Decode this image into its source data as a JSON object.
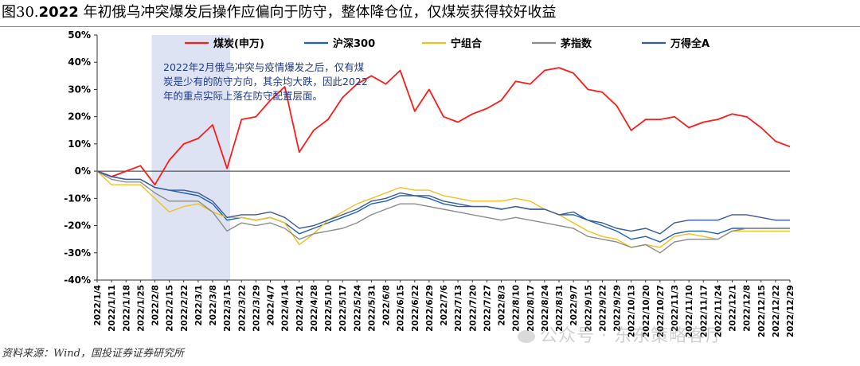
{
  "title": {
    "figure_label": "图30.",
    "year": "2022",
    "text": " 年初俄乌冲突爆发后操作应偏向于防守，整体降仓位，仅煤炭获得较好收益"
  },
  "source": "资料来源：Wind，国投证券证券研究所",
  "watermark": "公众号 · 东东策略客厅",
  "chart_data": {
    "type": "line",
    "title": "2022 年初俄乌冲突爆发后操作应偏向于防守，整体降仓位，仅煤炭获得较好收益",
    "ylim": [
      -40,
      50
    ],
    "yticks": [
      -40,
      -30,
      -20,
      -10,
      0,
      10,
      20,
      30,
      40,
      50
    ],
    "ytick_labels": [
      "-40%",
      "-30%",
      "-20%",
      "-10%",
      "0%",
      "10%",
      "20%",
      "30%",
      "40%",
      "50%"
    ],
    "x_tick_labels": [
      "2022/1/4",
      "2022/1/11",
      "2022/1/18",
      "2022/1/25",
      "2022/2/8",
      "2022/2/15",
      "2022/2/22",
      "2022/3/1",
      "2022/3/8",
      "2022/3/15",
      "2022/3/22",
      "2022/3/29",
      "2022/4/7",
      "2022/4/14",
      "2022/4/21",
      "2022/4/28",
      "2022/5/10",
      "2022/5/17",
      "2022/5/24",
      "2022/5/31",
      "2022/6/8",
      "2022/6/15",
      "2022/6/22",
      "2022/6/29",
      "2022/7/6",
      "2022/7/13",
      "2022/7/20",
      "2022/7/27",
      "2022/8/3",
      "2022/8/10",
      "2022/8/17",
      "2022/8/24",
      "2022/8/31",
      "2022/9/7",
      "2022/9/15",
      "2022/9/22",
      "2022/9/29",
      "2022/10/13",
      "2022/10/20",
      "2022/10/27",
      "2022/11/3",
      "2022/11/10",
      "2022/11/17",
      "2022/11/24",
      "2022/12/1",
      "2022/12/8",
      "2022/12/15",
      "2022/12/22",
      "2022/12/29"
    ],
    "shaded_region": [
      "2022/2/8",
      "2022/3/15"
    ],
    "annotation": "2022年2月俄乌冲突与疫情爆发之后，仅有煤炭是少有的防守方向，其余均大跌，因此2022年的重点实际上落在防守配置层面。",
    "legend_position": "top",
    "series": [
      {
        "name": "煤炭(申万)",
        "color": "#ff1a1a",
        "values": [
          0,
          -2,
          0,
          2,
          -5,
          4,
          10,
          12,
          17,
          1,
          19,
          20,
          26,
          31,
          7,
          15,
          19,
          27,
          32,
          35,
          32,
          37,
          22,
          30,
          20,
          18,
          21,
          23,
          26,
          33,
          32,
          37,
          38,
          36,
          30,
          29,
          24,
          15,
          19,
          19,
          20,
          16,
          18,
          19,
          21,
          20,
          16,
          11,
          9
        ]
      },
      {
        "name": "沪深300",
        "color": "#1f5fb8",
        "values": [
          0,
          -2,
          -3,
          -3,
          -6,
          -7,
          -8,
          -9,
          -12,
          -18,
          -17,
          -18,
          -17,
          -19,
          -23,
          -21,
          -19,
          -17,
          -15,
          -12,
          -11,
          -9,
          -9,
          -10,
          -12,
          -13,
          -13,
          -13,
          -14,
          -13,
          -14,
          -14,
          -16,
          -16,
          -18,
          -20,
          -22,
          -25,
          -24,
          -26,
          -23,
          -22,
          -22,
          -23,
          -21,
          -21,
          -21,
          -21,
          -21
        ]
      },
      {
        "name": "宁组合",
        "color": "#f0c020",
        "values": [
          0,
          -5,
          -5,
          -5,
          -10,
          -15,
          -13,
          -12,
          -15,
          -17,
          -17,
          -18,
          -17,
          -19,
          -27,
          -23,
          -18,
          -15,
          -12,
          -10,
          -8,
          -6,
          -7,
          -7,
          -9,
          -10,
          -11,
          -11,
          -11,
          -10,
          -11,
          -14,
          -16,
          -19,
          -22,
          -24,
          -25,
          -28,
          -27,
          -28,
          -24,
          -23,
          -24,
          -25,
          -22,
          -22,
          -22,
          -22,
          -22
        ]
      },
      {
        "name": "茅指数",
        "color": "#8c8c8c",
        "values": [
          0,
          -3,
          -4,
          -4,
          -8,
          -11,
          -11,
          -11,
          -15,
          -22,
          -19,
          -20,
          -19,
          -21,
          -25,
          -23,
          -22,
          -21,
          -19,
          -16,
          -14,
          -12,
          -12,
          -13,
          -14,
          -15,
          -16,
          -17,
          -18,
          -17,
          -18,
          -19,
          -20,
          -21,
          -24,
          -25,
          -26,
          -28,
          -27,
          -30,
          -26,
          -25,
          -25,
          -25,
          -22,
          -21,
          -21,
          -21,
          -21
        ]
      },
      {
        "name": "万得全A",
        "color": "#3a5a9a",
        "values": [
          0,
          -2,
          -3,
          -3,
          -6,
          -7,
          -7,
          -8,
          -11,
          -17,
          -16,
          -16,
          -15,
          -17,
          -21,
          -20,
          -18,
          -16,
          -14,
          -11,
          -10,
          -8,
          -9,
          -9,
          -11,
          -12,
          -13,
          -13,
          -14,
          -13,
          -14,
          -14,
          -16,
          -15,
          -18,
          -19,
          -21,
          -22,
          -21,
          -23,
          -19,
          -18,
          -18,
          -18,
          -16,
          -16,
          -17,
          -18,
          -18
        ]
      }
    ]
  }
}
